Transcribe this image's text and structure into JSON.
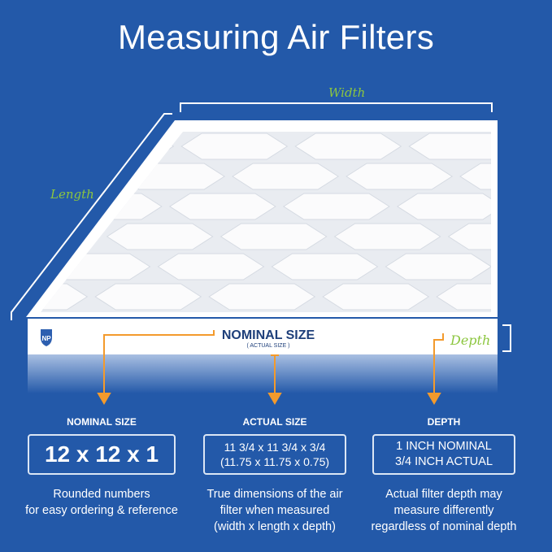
{
  "title": "Measuring Air Filters",
  "labels": {
    "width": "Width",
    "length": "Length",
    "depth": "Depth",
    "nominal": "NOMINAL SIZE",
    "actual": "( ACTUAL SIZE )",
    "logo": "NP"
  },
  "colors": {
    "background": "#2359a9",
    "accent_arrow": "#f39a2c",
    "label_green": "#8cc63f",
    "nominal_text": "#1e3f7a"
  },
  "columns": [
    {
      "heading": "NOMINAL SIZE",
      "box": [
        "12 x 12 x 1"
      ],
      "desc": [
        "Rounded numbers",
        "for easy ordering & reference"
      ]
    },
    {
      "heading": "ACTUAL SIZE",
      "box": [
        "11 3/4 x 11 3/4 x 3/4",
        "(11.75 x 11.75 x 0.75)"
      ],
      "desc": [
        "True dimensions of the air",
        "filter when measured",
        "(width x length x depth)"
      ]
    },
    {
      "heading": "DEPTH",
      "box": [
        "1 INCH NOMINAL",
        "3/4 INCH ACTUAL"
      ],
      "desc": [
        "Actual filter depth may",
        "measure differently",
        "regardless of nominal depth"
      ]
    }
  ]
}
